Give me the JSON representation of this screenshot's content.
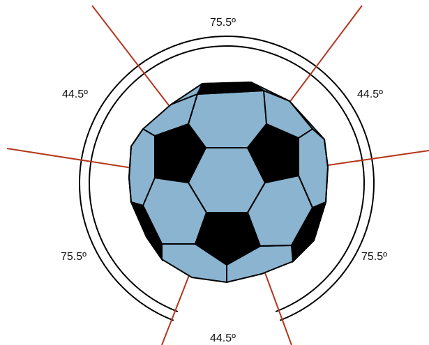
{
  "angle_labels": {
    "top": "75.5º",
    "upper_left": "44.5º",
    "upper_right": "44.5º",
    "lower_left": "75.5º",
    "lower_right": "75.5º",
    "bottom": "44.5º"
  },
  "colors": {
    "hexagon_fill": "#8ab4d0",
    "pentagon_fill": "#000000",
    "outline": "#000000",
    "ray": "#b5361c",
    "ring": "#000000"
  }
}
